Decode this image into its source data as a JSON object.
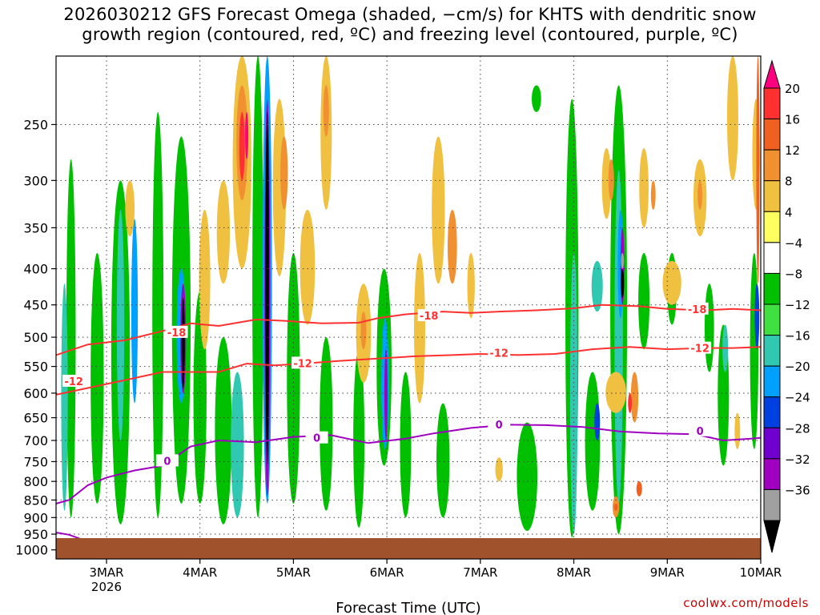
{
  "title": {
    "line1": "2026030212 GFS Forecast Omega (shaded, −cm/s) for KHTS with dendritic snow",
    "line2": "growth region (contoured, red, ºC) and freezing level (contoured, purple, ºC)"
  },
  "credit": "coolwx.com/models",
  "chart_data": {
    "type": "heatmap",
    "xlabel": "Forecast Time (UTC)",
    "ylabel": "",
    "x_ticks": [
      {
        "label": "3MAR",
        "sub": "2026",
        "day": 1
      },
      {
        "label": "4MAR",
        "sub": "",
        "day": 2
      },
      {
        "label": "5MAR",
        "sub": "",
        "day": 3
      },
      {
        "label": "6MAR",
        "sub": "",
        "day": 4
      },
      {
        "label": "7MAR",
        "sub": "",
        "day": 5
      },
      {
        "label": "8MAR",
        "sub": "",
        "day": 6
      },
      {
        "label": "9MAR",
        "sub": "",
        "day": 7
      },
      {
        "label": "10MAR",
        "sub": "",
        "day": 8
      }
    ],
    "xlim_days": [
      0.46,
      8.0
    ],
    "y_ticks": [
      250,
      300,
      350,
      400,
      450,
      500,
      550,
      600,
      650,
      700,
      750,
      800,
      850,
      900,
      950,
      1000
    ],
    "ylim_hpa": [
      200,
      1030
    ],
    "y_scale": "log pressure",
    "grid": true,
    "colorbar": {
      "labels": [
        "20",
        "16",
        "12",
        "8",
        "4",
        "−4",
        "−8",
        "−12",
        "−16",
        "−20",
        "−24",
        "−28",
        "−32",
        "−36"
      ],
      "colors": [
        "#ff0080",
        "#ff3030",
        "#f06020",
        "#f09030",
        "#f0c040",
        "#ffff60",
        "#ffffff",
        "#00c000",
        "#40e040",
        "#30c8b0",
        "#00a0ff",
        "#0040e0",
        "#7000d0",
        "#a000c0",
        "#a0a0a0",
        "#000000"
      ]
    },
    "contours": [
      {
        "label": "-18",
        "color": "#ff3030",
        "points": [
          [
            0.46,
            530
          ],
          [
            0.8,
            512
          ],
          [
            1.2,
            505
          ],
          [
            1.6,
            490
          ],
          [
            1.9,
            478
          ],
          [
            2.2,
            482
          ],
          [
            2.6,
            472
          ],
          [
            2.9,
            474
          ],
          [
            3.3,
            478
          ],
          [
            3.7,
            477
          ],
          [
            3.9,
            470
          ],
          [
            4.2,
            464
          ],
          [
            4.6,
            460
          ],
          [
            4.9,
            462
          ],
          [
            5.2,
            460
          ],
          [
            5.6,
            458
          ],
          [
            6.0,
            455
          ],
          [
            6.3,
            450
          ],
          [
            6.7,
            452
          ],
          [
            7.0,
            456
          ],
          [
            7.4,
            458
          ],
          [
            7.7,
            456
          ],
          [
            8.0,
            458
          ]
        ]
      },
      {
        "label": "-12",
        "color": "#ff3030",
        "points": [
          [
            0.46,
            603
          ],
          [
            0.8,
            590
          ],
          [
            1.2,
            575
          ],
          [
            1.6,
            560
          ],
          [
            1.9,
            560
          ],
          [
            2.2,
            560
          ],
          [
            2.5,
            545
          ],
          [
            2.8,
            548
          ],
          [
            3.1,
            545
          ],
          [
            3.5,
            540
          ],
          [
            3.9,
            536
          ],
          [
            4.3,
            532
          ],
          [
            4.7,
            530
          ],
          [
            5.0,
            528
          ],
          [
            5.4,
            530
          ],
          [
            5.8,
            528
          ],
          [
            6.2,
            520
          ],
          [
            6.6,
            516
          ],
          [
            7.0,
            520
          ],
          [
            7.4,
            518
          ],
          [
            7.7,
            518
          ],
          [
            8.0,
            516
          ]
        ]
      },
      {
        "label": "0",
        "color": "#a000c0",
        "points": [
          [
            0.46,
            860
          ],
          [
            0.6,
            850
          ],
          [
            0.8,
            810
          ],
          [
            1.0,
            790
          ],
          [
            1.3,
            772
          ],
          [
            1.6,
            760
          ],
          [
            1.9,
            714
          ],
          [
            2.2,
            700
          ],
          [
            2.6,
            704
          ],
          [
            3.0,
            692
          ],
          [
            3.4,
            688
          ],
          [
            3.8,
            706
          ],
          [
            4.2,
            696
          ],
          [
            4.5,
            684
          ],
          [
            4.9,
            672
          ],
          [
            5.3,
            665
          ],
          [
            5.7,
            666
          ],
          [
            6.1,
            670
          ],
          [
            6.5,
            680
          ],
          [
            6.9,
            684
          ],
          [
            7.3,
            686
          ],
          [
            7.6,
            700
          ],
          [
            7.9,
            696
          ],
          [
            8.0,
            694
          ]
        ]
      },
      {
        "label": "0",
        "color": "#a000c0",
        "points": [
          [
            0.46,
            945
          ],
          [
            0.6,
            952
          ],
          [
            0.75,
            968
          ],
          [
            0.85,
            975
          ]
        ]
      }
    ],
    "contour_labels": [
      {
        "text": "-18",
        "color": "#ff3030",
        "day": 1.75,
        "hpa": 492
      },
      {
        "text": "-18",
        "color": "#ff3030",
        "day": 4.45,
        "hpa": 466
      },
      {
        "text": "-18",
        "color": "#ff3030",
        "day": 7.32,
        "hpa": 456
      },
      {
        "text": "-12",
        "color": "#ff3030",
        "day": 0.65,
        "hpa": 577
      },
      {
        "text": "-12",
        "color": "#ff3030",
        "day": 3.1,
        "hpa": 544
      },
      {
        "text": "-12",
        "color": "#ff3030",
        "day": 5.2,
        "hpa": 526
      },
      {
        "text": "-12",
        "color": "#ff3030",
        "day": 7.35,
        "hpa": 518
      },
      {
        "text": "0",
        "color": "#a000c0",
        "day": 1.65,
        "hpa": 748
      },
      {
        "text": "0",
        "color": "#a000c0",
        "day": 3.25,
        "hpa": 694
      },
      {
        "text": "0",
        "color": "#a000c0",
        "day": 5.2,
        "hpa": 664
      },
      {
        "text": "0",
        "color": "#a000c0",
        "day": 7.35,
        "hpa": 678
      }
    ],
    "omega_patches": [
      {
        "day": 0.62,
        "p0": 280,
        "p1": 900,
        "w": 0.1,
        "level": "-8"
      },
      {
        "day": 0.55,
        "p0": 420,
        "p1": 880,
        "w": 0.07,
        "level": "-12"
      },
      {
        "day": 0.9,
        "p0": 380,
        "p1": 860,
        "w": 0.14,
        "level": "-8"
      },
      {
        "day": 1.15,
        "p0": 300,
        "p1": 920,
        "w": 0.2,
        "level": "-8"
      },
      {
        "day": 1.15,
        "p0": 330,
        "p1": 700,
        "w": 0.08,
        "level": "-12"
      },
      {
        "day": 1.3,
        "p0": 340,
        "p1": 620,
        "w": 0.07,
        "level": "-16"
      },
      {
        "day": 1.55,
        "p0": 240,
        "p1": 900,
        "w": 0.12,
        "level": "-8"
      },
      {
        "day": 1.8,
        "p0": 260,
        "p1": 860,
        "w": 0.2,
        "level": "-8"
      },
      {
        "day": 1.8,
        "p0": 400,
        "p1": 620,
        "w": 0.1,
        "level": "-16"
      },
      {
        "day": 1.82,
        "p0": 420,
        "p1": 600,
        "w": 0.06,
        "level": "-28"
      },
      {
        "day": 1.82,
        "p0": 440,
        "p1": 590,
        "w": 0.035,
        "level": "-36"
      },
      {
        "day": 2.0,
        "p0": 430,
        "p1": 860,
        "w": 0.14,
        "level": "-8"
      },
      {
        "day": 2.25,
        "p0": 500,
        "p1": 920,
        "w": 0.18,
        "level": "-8"
      },
      {
        "day": 2.4,
        "p0": 560,
        "p1": 900,
        "w": 0.14,
        "level": "-12"
      },
      {
        "day": 2.62,
        "p0": 200,
        "p1": 900,
        "w": 0.12,
        "level": "-8"
      },
      {
        "day": 2.72,
        "p0": 200,
        "p1": 860,
        "w": 0.1,
        "level": "-16"
      },
      {
        "day": 2.72,
        "p0": 230,
        "p1": 840,
        "w": 0.06,
        "level": "-28"
      },
      {
        "day": 2.72,
        "p0": 240,
        "p1": 760,
        "w": 0.04,
        "level": "-36"
      },
      {
        "day": 3.0,
        "p0": 380,
        "p1": 860,
        "w": 0.14,
        "level": "-8"
      },
      {
        "day": 3.35,
        "p0": 500,
        "p1": 880,
        "w": 0.14,
        "level": "-8"
      },
      {
        "day": 3.7,
        "p0": 520,
        "p1": 930,
        "w": 0.12,
        "level": "-8"
      },
      {
        "day": 3.97,
        "p0": 400,
        "p1": 760,
        "w": 0.16,
        "level": "-8"
      },
      {
        "day": 3.98,
        "p0": 470,
        "p1": 720,
        "w": 0.08,
        "level": "-16"
      },
      {
        "day": 3.99,
        "p0": 520,
        "p1": 700,
        "w": 0.035,
        "level": "-28"
      },
      {
        "day": 4.2,
        "p0": 560,
        "p1": 900,
        "w": 0.12,
        "level": "-8"
      },
      {
        "day": 4.6,
        "p0": 620,
        "p1": 900,
        "w": 0.14,
        "level": "-8"
      },
      {
        "day": 5.5,
        "p0": 660,
        "p1": 940,
        "w": 0.22,
        "level": "-8"
      },
      {
        "day": 5.6,
        "p0": 220,
        "p1": 240,
        "w": 0.1,
        "level": "-8"
      },
      {
        "day": 5.98,
        "p0": 230,
        "p1": 960,
        "w": 0.14,
        "level": "-8"
      },
      {
        "day": 6.0,
        "p0": 380,
        "p1": 950,
        "w": 0.08,
        "level": "-12"
      },
      {
        "day": 6.2,
        "p0": 560,
        "p1": 880,
        "w": 0.16,
        "level": "-8"
      },
      {
        "day": 6.25,
        "p0": 390,
        "p1": 460,
        "w": 0.12,
        "level": "-12"
      },
      {
        "day": 6.25,
        "p0": 620,
        "p1": 700,
        "w": 0.06,
        "level": "-20"
      },
      {
        "day": 6.48,
        "p0": 220,
        "p1": 950,
        "w": 0.18,
        "level": "-8"
      },
      {
        "day": 6.48,
        "p0": 290,
        "p1": 860,
        "w": 0.09,
        "level": "-12"
      },
      {
        "day": 6.5,
        "p0": 330,
        "p1": 470,
        "w": 0.06,
        "level": "-16"
      },
      {
        "day": 6.52,
        "p0": 350,
        "p1": 450,
        "w": 0.04,
        "level": "-28"
      },
      {
        "day": 6.52,
        "p0": 400,
        "p1": 440,
        "w": 0.025,
        "level": "-36"
      },
      {
        "day": 6.52,
        "p0": 380,
        "p1": 400,
        "w": 0.025,
        "level": "-32"
      },
      {
        "day": 6.75,
        "p0": 380,
        "p1": 520,
        "w": 0.12,
        "level": "-8"
      },
      {
        "day": 7.05,
        "p0": 380,
        "p1": 480,
        "w": 0.1,
        "level": "-8"
      },
      {
        "day": 7.45,
        "p0": 420,
        "p1": 560,
        "w": 0.1,
        "level": "-8"
      },
      {
        "day": 7.6,
        "p0": 480,
        "p1": 760,
        "w": 0.12,
        "level": "-8"
      },
      {
        "day": 7.62,
        "p0": 480,
        "p1": 560,
        "w": 0.06,
        "level": "-12"
      },
      {
        "day": 7.93,
        "p0": 380,
        "p1": 720,
        "w": 0.09,
        "level": "-8"
      },
      {
        "day": 7.96,
        "p0": 420,
        "p1": 520,
        "w": 0.05,
        "level": "-20"
      }
    ],
    "positive_patches": [
      {
        "day": 1.25,
        "p0": 300,
        "p1": 360,
        "w": 0.1,
        "level": "4"
      },
      {
        "day": 2.05,
        "p0": 330,
        "p1": 520,
        "w": 0.12,
        "level": "4"
      },
      {
        "day": 2.25,
        "p0": 300,
        "p1": 420,
        "w": 0.14,
        "level": "4"
      },
      {
        "day": 2.45,
        "p0": 200,
        "p1": 400,
        "w": 0.2,
        "level": "4"
      },
      {
        "day": 2.45,
        "p0": 220,
        "p1": 320,
        "w": 0.12,
        "level": "8"
      },
      {
        "day": 2.45,
        "p0": 240,
        "p1": 300,
        "w": 0.06,
        "level": "16"
      },
      {
        "day": 2.5,
        "p0": 240,
        "p1": 280,
        "w": 0.03,
        "level": "20"
      },
      {
        "day": 2.85,
        "p0": 230,
        "p1": 410,
        "w": 0.14,
        "level": "4"
      },
      {
        "day": 2.9,
        "p0": 260,
        "p1": 330,
        "w": 0.08,
        "level": "8"
      },
      {
        "day": 3.15,
        "p0": 330,
        "p1": 480,
        "w": 0.16,
        "level": "4"
      },
      {
        "day": 3.35,
        "p0": 200,
        "p1": 330,
        "w": 0.12,
        "level": "4"
      },
      {
        "day": 3.35,
        "p0": 220,
        "p1": 260,
        "w": 0.06,
        "level": "8"
      },
      {
        "day": 3.75,
        "p0": 420,
        "p1": 580,
        "w": 0.16,
        "level": "4"
      },
      {
        "day": 3.75,
        "p0": 460,
        "p1": 520,
        "w": 0.06,
        "level": "8"
      },
      {
        "day": 4.35,
        "p0": 380,
        "p1": 620,
        "w": 0.12,
        "level": "4"
      },
      {
        "day": 4.55,
        "p0": 260,
        "p1": 420,
        "w": 0.14,
        "level": "4"
      },
      {
        "day": 4.7,
        "p0": 330,
        "p1": 420,
        "w": 0.1,
        "level": "8"
      },
      {
        "day": 4.9,
        "p0": 380,
        "p1": 470,
        "w": 0.08,
        "level": "4"
      },
      {
        "day": 5.2,
        "p0": 740,
        "p1": 800,
        "w": 0.08,
        "level": "4"
      },
      {
        "day": 6.45,
        "p0": 560,
        "p1": 640,
        "w": 0.22,
        "level": "4"
      },
      {
        "day": 6.65,
        "p0": 560,
        "p1": 660,
        "w": 0.08,
        "level": "8"
      },
      {
        "day": 6.6,
        "p0": 600,
        "p1": 640,
        "w": 0.04,
        "level": "16"
      },
      {
        "day": 6.45,
        "p0": 840,
        "p1": 900,
        "w": 0.07,
        "level": "8"
      },
      {
        "day": 6.45,
        "p0": 860,
        "p1": 880,
        "w": 0.04,
        "level": "12"
      },
      {
        "day": 6.7,
        "p0": 800,
        "p1": 840,
        "w": 0.06,
        "level": "12"
      },
      {
        "day": 6.35,
        "p0": 270,
        "p1": 340,
        "w": 0.1,
        "level": "4"
      },
      {
        "day": 6.4,
        "p0": 280,
        "p1": 320,
        "w": 0.06,
        "level": "8"
      },
      {
        "day": 6.75,
        "p0": 270,
        "p1": 350,
        "w": 0.1,
        "level": "4"
      },
      {
        "day": 6.85,
        "p0": 300,
        "p1": 330,
        "w": 0.05,
        "level": "8"
      },
      {
        "day": 7.05,
        "p0": 390,
        "p1": 450,
        "w": 0.2,
        "level": "4"
      },
      {
        "day": 7.35,
        "p0": 280,
        "p1": 360,
        "w": 0.14,
        "level": "4"
      },
      {
        "day": 7.35,
        "p0": 300,
        "p1": 330,
        "w": 0.05,
        "level": "8"
      },
      {
        "day": 7.7,
        "p0": 200,
        "p1": 300,
        "w": 0.12,
        "level": "4"
      },
      {
        "day": 7.95,
        "p0": 230,
        "p1": 330,
        "w": 0.08,
        "level": "4"
      },
      {
        "day": 7.97,
        "p0": 200,
        "p1": 420,
        "w": 0.035,
        "level": "12"
      },
      {
        "day": 7.75,
        "p0": 640,
        "p1": 720,
        "w": 0.06,
        "level": "4"
      }
    ]
  }
}
